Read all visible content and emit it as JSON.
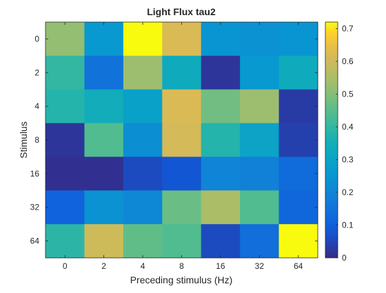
{
  "chart_data": {
    "type": "heatmap",
    "title": "Light Flux tau2",
    "xlabel": "Preceding stimulus (Hz)",
    "ylabel": "Stimulus",
    "x_categories": [
      "0",
      "2",
      "4",
      "8",
      "16",
      "32",
      "64"
    ],
    "y_categories": [
      "0",
      "2",
      "4",
      "8",
      "16",
      "32",
      "64"
    ],
    "values": [
      [
        0.52,
        0.26,
        0.72,
        0.62,
        0.25,
        0.24,
        0.25
      ],
      [
        0.4,
        0.15,
        0.53,
        0.33,
        0.02,
        0.26,
        0.33
      ],
      [
        0.38,
        0.34,
        0.29,
        0.62,
        0.48,
        0.53,
        0.03
      ],
      [
        0.02,
        0.44,
        0.23,
        0.61,
        0.38,
        0.3,
        0.04
      ],
      [
        0.01,
        0.01,
        0.06,
        0.08,
        0.2,
        0.19,
        0.13
      ],
      [
        0.11,
        0.24,
        0.21,
        0.47,
        0.55,
        0.44,
        0.12
      ],
      [
        0.39,
        0.6,
        0.46,
        0.44,
        0.06,
        0.14,
        0.72
      ]
    ],
    "colorbar": {
      "min": 0,
      "max": 0.72,
      "ticks": [
        "0",
        "0.1",
        "0.2",
        "0.3",
        "0.4",
        "0.5",
        "0.6",
        "0.7"
      ],
      "colormap": "parula"
    }
  },
  "colors": {
    "axis": "#262626",
    "background": "#ffffff"
  }
}
